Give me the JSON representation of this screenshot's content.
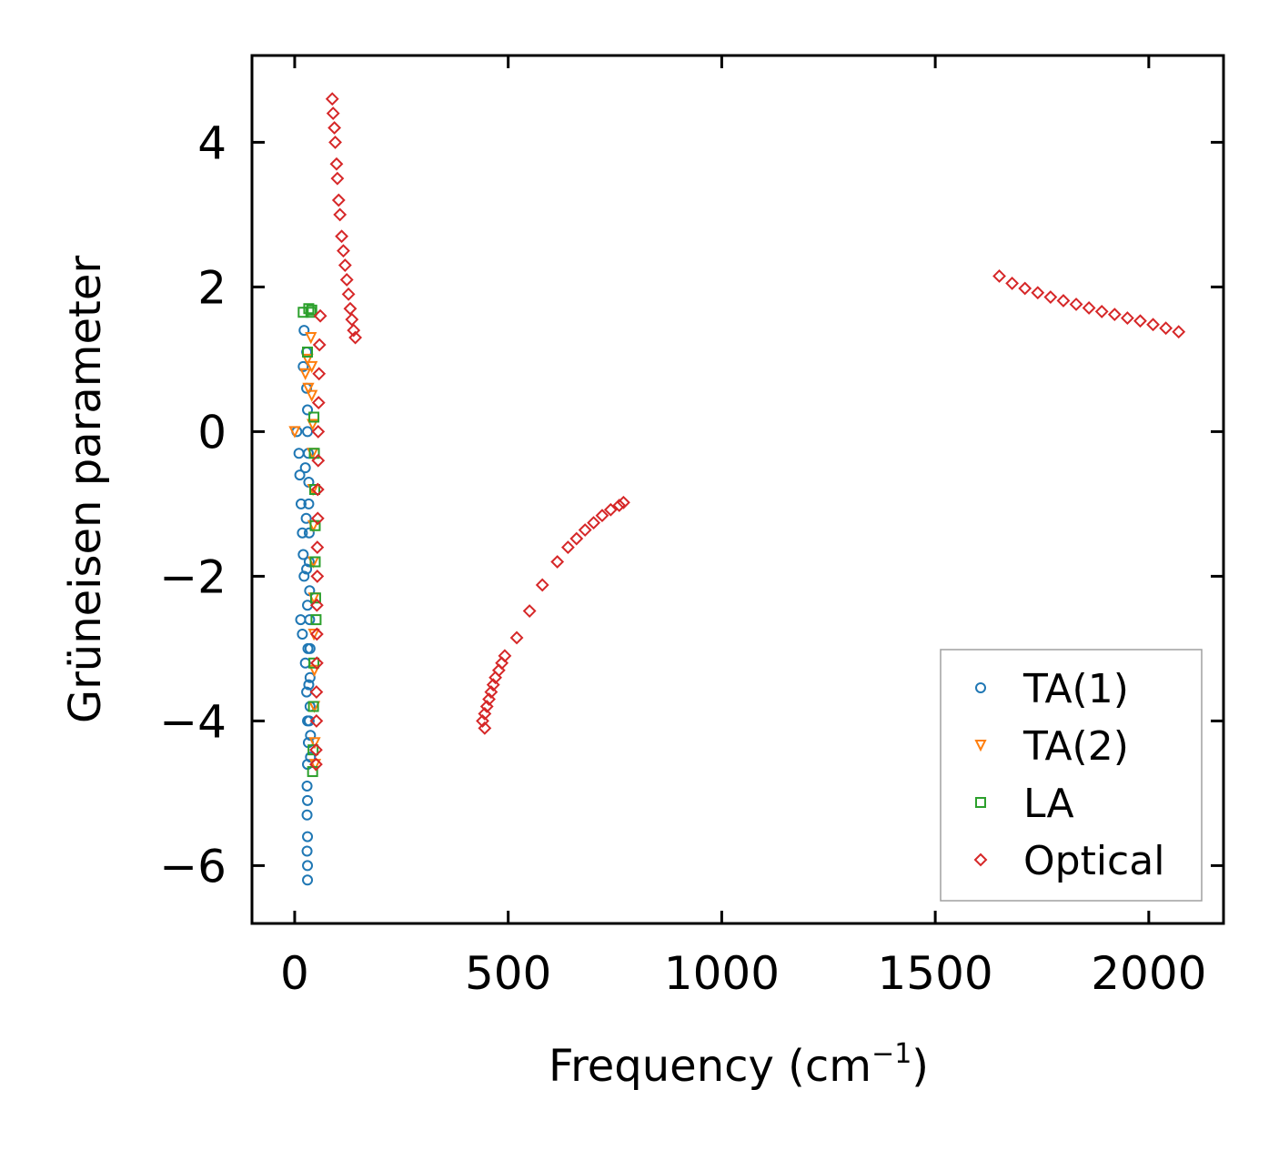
{
  "chart_data": {
    "type": "scatter",
    "title": "",
    "xlabel": "Frequency (cm",
    "xlabel_sup": "−1",
    "xlabel_close": ")",
    "ylabel": "Grüneisen parameter",
    "xlim": [
      -100,
      2175
    ],
    "ylim": [
      -6.8,
      5.2
    ],
    "xticks": [
      0,
      500,
      1000,
      1500,
      2000
    ],
    "xtick_labels": [
      "0",
      "500",
      "1000",
      "1500",
      "2000"
    ],
    "yticks": [
      -6,
      -4,
      -2,
      0,
      2,
      4
    ],
    "ytick_labels": [
      "−6",
      "−4",
      "−2",
      "0",
      "2",
      "4"
    ],
    "grid": false,
    "legend_position": "lower-right",
    "series": [
      {
        "name": "TA(1)",
        "marker": "circle",
        "color": "#1f77b4",
        "points": [
          [
            5,
            0.0
          ],
          [
            10,
            -0.3
          ],
          [
            12,
            -0.6
          ],
          [
            15,
            -1.0
          ],
          [
            18,
            -1.4
          ],
          [
            20,
            -1.7
          ],
          [
            22,
            -2.0
          ],
          [
            14,
            -2.6
          ],
          [
            18,
            -2.8
          ],
          [
            25,
            -3.2
          ],
          [
            28,
            -3.6
          ],
          [
            30,
            -4.0
          ],
          [
            32,
            -4.3
          ],
          [
            30,
            -4.6
          ],
          [
            29,
            -4.9
          ],
          [
            30,
            -5.1
          ],
          [
            29,
            -5.3
          ],
          [
            30,
            -5.6
          ],
          [
            29,
            -5.8
          ],
          [
            30,
            -6.0
          ],
          [
            30,
            -6.2
          ],
          [
            22,
            1.4
          ],
          [
            28,
            1.1
          ],
          [
            20,
            0.9
          ],
          [
            28,
            0.6
          ],
          [
            30,
            0.3
          ],
          [
            30,
            0.0
          ],
          [
            32,
            -0.3
          ],
          [
            33,
            -0.7
          ],
          [
            33,
            -1.0
          ],
          [
            34,
            -1.4
          ],
          [
            34,
            -1.8
          ],
          [
            35,
            -2.2
          ],
          [
            35,
            -2.6
          ],
          [
            36,
            -3.0
          ],
          [
            36,
            -3.4
          ],
          [
            36,
            -3.8
          ],
          [
            37,
            -4.2
          ],
          [
            37,
            -4.5
          ],
          [
            25,
            -0.5
          ],
          [
            27,
            -1.2
          ],
          [
            28,
            -1.9
          ],
          [
            30,
            -2.4
          ],
          [
            31,
            -3.0
          ],
          [
            33,
            -3.5
          ],
          [
            34,
            -4.0
          ]
        ]
      },
      {
        "name": "TA(2)",
        "marker": "triangle-down",
        "color": "#ff7f0e",
        "points": [
          [
            0,
            0.0
          ],
          [
            38,
            1.3
          ],
          [
            40,
            0.9
          ],
          [
            40,
            0.5
          ],
          [
            42,
            0.1
          ],
          [
            42,
            -0.3
          ],
          [
            43,
            -0.8
          ],
          [
            44,
            -1.3
          ],
          [
            44,
            -1.8
          ],
          [
            45,
            -2.3
          ],
          [
            45,
            -2.8
          ],
          [
            46,
            -3.3
          ],
          [
            46,
            -3.8
          ],
          [
            47,
            -4.3
          ],
          [
            48,
            -4.6
          ],
          [
            30,
            1.0
          ],
          [
            32,
            0.6
          ],
          [
            25,
            0.8
          ]
        ]
      },
      {
        "name": "LA",
        "marker": "square",
        "color": "#2ca02c",
        "points": [
          [
            33,
            1.7
          ],
          [
            40,
            1.68
          ],
          [
            38,
            1.65
          ],
          [
            20,
            1.65
          ],
          [
            30,
            1.1
          ],
          [
            45,
            0.2
          ],
          [
            46,
            -0.3
          ],
          [
            47,
            -0.8
          ],
          [
            48,
            -1.3
          ],
          [
            48,
            -1.8
          ],
          [
            49,
            -2.3
          ],
          [
            50,
            -2.6
          ],
          [
            45,
            -3.2
          ],
          [
            44,
            -3.8
          ],
          [
            43,
            -4.4
          ],
          [
            42,
            -4.7
          ]
        ]
      },
      {
        "name": "Optical",
        "marker": "diamond",
        "color": "#d62728",
        "points": [
          [
            88,
            4.6
          ],
          [
            90,
            4.4
          ],
          [
            93,
            4.2
          ],
          [
            95,
            4.0
          ],
          [
            98,
            3.7
          ],
          [
            100,
            3.5
          ],
          [
            103,
            3.2
          ],
          [
            106,
            3.0
          ],
          [
            110,
            2.7
          ],
          [
            114,
            2.5
          ],
          [
            118,
            2.3
          ],
          [
            122,
            2.1
          ],
          [
            126,
            1.9
          ],
          [
            130,
            1.7
          ],
          [
            134,
            1.55
          ],
          [
            138,
            1.4
          ],
          [
            142,
            1.3
          ],
          [
            60,
            1.6
          ],
          [
            58,
            1.2
          ],
          [
            57,
            0.8
          ],
          [
            56,
            0.4
          ],
          [
            55,
            0.0
          ],
          [
            55,
            -0.4
          ],
          [
            54,
            -0.8
          ],
          [
            54,
            -1.2
          ],
          [
            53,
            -1.6
          ],
          [
            53,
            -2.0
          ],
          [
            52,
            -2.4
          ],
          [
            52,
            -2.8
          ],
          [
            52,
            -3.2
          ],
          [
            51,
            -3.6
          ],
          [
            51,
            -4.0
          ],
          [
            50,
            -4.4
          ],
          [
            50,
            -4.6
          ],
          [
            445,
            -4.1
          ],
          [
            440,
            -4.0
          ],
          [
            445,
            -3.9
          ],
          [
            450,
            -3.8
          ],
          [
            455,
            -3.7
          ],
          [
            460,
            -3.6
          ],
          [
            465,
            -3.5
          ],
          [
            470,
            -3.4
          ],
          [
            478,
            -3.3
          ],
          [
            485,
            -3.2
          ],
          [
            492,
            -3.1
          ],
          [
            520,
            -2.85
          ],
          [
            550,
            -2.48
          ],
          [
            580,
            -2.12
          ],
          [
            615,
            -1.8
          ],
          [
            640,
            -1.6
          ],
          [
            660,
            -1.48
          ],
          [
            680,
            -1.36
          ],
          [
            700,
            -1.26
          ],
          [
            720,
            -1.16
          ],
          [
            740,
            -1.08
          ],
          [
            760,
            -1.02
          ],
          [
            770,
            -0.98
          ],
          [
            1650,
            2.15
          ],
          [
            1680,
            2.05
          ],
          [
            1710,
            1.98
          ],
          [
            1740,
            1.92
          ],
          [
            1770,
            1.86
          ],
          [
            1800,
            1.81
          ],
          [
            1830,
            1.76
          ],
          [
            1860,
            1.71
          ],
          [
            1890,
            1.66
          ],
          [
            1920,
            1.62
          ],
          [
            1950,
            1.57
          ],
          [
            1980,
            1.53
          ],
          [
            2010,
            1.48
          ],
          [
            2040,
            1.43
          ],
          [
            2070,
            1.38
          ]
        ]
      }
    ]
  }
}
